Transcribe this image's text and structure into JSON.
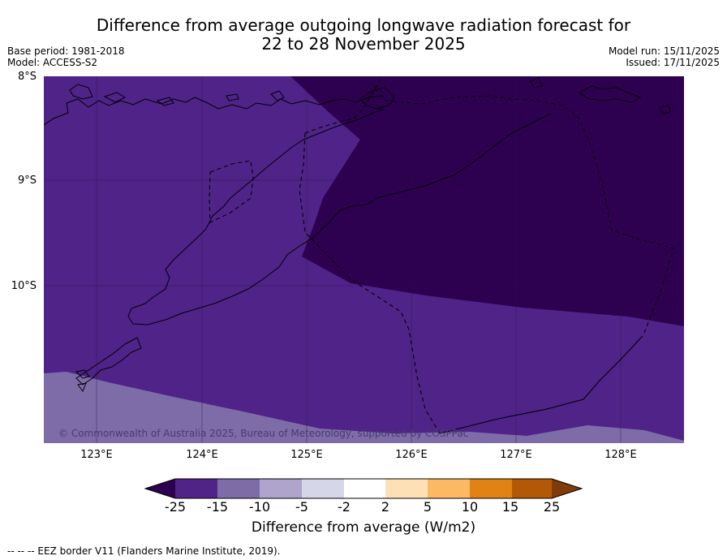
{
  "title": {
    "line1": "Difference from average outgoing longwave radiation forecast for",
    "line2": "22 to 28 November 2025"
  },
  "meta_left": {
    "base_period": "Base period: 1981-2018",
    "model": "Model: ACCESS-S2"
  },
  "meta_right": {
    "model_run": "Model run: 15/11/2025",
    "issued": "Issued: 17/11/2025"
  },
  "latitude_labels": [
    "8°S",
    "9°S",
    "10°S"
  ],
  "longitude_labels": [
    "123°E",
    "124°E",
    "125°E",
    "126°E",
    "127°E",
    "128°E"
  ],
  "copyright": "© Commonwealth of Australia 2025, Bureau of Meteorology, supported by COSPPac",
  "legend": {
    "title": "Difference from average (W/m2)",
    "ticks": [
      "-25",
      "-15",
      "-10",
      "-5",
      "-2",
      "2",
      "5",
      "10",
      "15",
      "25"
    ],
    "colors": [
      "#2d0050",
      "#4f2388",
      "#7d6ca8",
      "#aea4cc",
      "#d5d6e8",
      "#ffffff",
      "#fee0b6",
      "#fdb863",
      "#e08214",
      "#b35806",
      "#7f3b08"
    ]
  },
  "shading": {
    "strong_negative": "#2d0050",
    "negative": "#4f2388",
    "weak_negative": "#7d6ca8"
  },
  "footnote": "--  --  -- EEZ border V11 (Flanders Marine Institute, 2019)."
}
